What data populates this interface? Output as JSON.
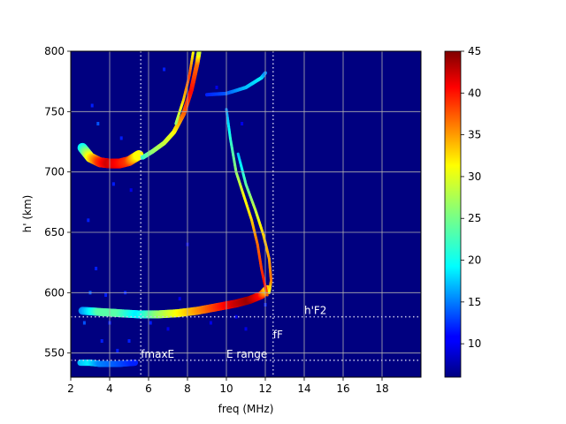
{
  "chart_data": {
    "type": "heatmap",
    "xlabel": "freq (MHz)",
    "ylabel": "h' (km)",
    "xlim": [
      2,
      20
    ],
    "ylim": [
      530,
      800
    ],
    "xticks": [
      2,
      4,
      6,
      8,
      10,
      12,
      14,
      16,
      18
    ],
    "yticks": [
      550,
      600,
      650,
      700,
      750,
      800
    ],
    "grid": true,
    "colormap": "jet",
    "colorbar": {
      "min": 6,
      "max": 45,
      "ticks": [
        10,
        15,
        20,
        25,
        30,
        35,
        40,
        45
      ]
    },
    "background_value": 6,
    "traces": [
      {
        "points": [
          [
            2.6,
            585
          ],
          [
            3.5,
            584
          ],
          [
            4.5,
            583
          ],
          [
            5.5,
            582
          ],
          [
            6.5,
            582
          ],
          [
            7.5,
            583
          ],
          [
            8.5,
            585
          ],
          [
            9.5,
            588
          ],
          [
            10.5,
            591
          ],
          [
            11.2,
            594
          ],
          [
            11.8,
            598
          ],
          [
            12.1,
            603
          ]
        ],
        "values": [
          16,
          24,
          24,
          20,
          26,
          30,
          34,
          38,
          42,
          44,
          40,
          32
        ],
        "width": 9
      },
      {
        "points": [
          [
            2.6,
            720
          ],
          [
            3.0,
            712
          ],
          [
            3.5,
            708
          ],
          [
            4.0,
            707
          ],
          [
            4.5,
            707
          ],
          [
            5.0,
            709
          ],
          [
            5.5,
            714
          ]
        ],
        "values": [
          20,
          30,
          38,
          42,
          40,
          38,
          30
        ],
        "width": 11
      },
      {
        "points": [
          [
            5.7,
            712
          ],
          [
            6.2,
            717
          ],
          [
            6.8,
            724
          ],
          [
            7.3,
            733
          ],
          [
            7.8,
            748
          ],
          [
            8.2,
            768
          ],
          [
            8.5,
            790
          ],
          [
            8.6,
            800
          ]
        ],
        "values": [
          22,
          26,
          28,
          30,
          36,
          40,
          36,
          28
        ],
        "width": 5
      },
      {
        "points": [
          [
            7.4,
            740
          ],
          [
            7.8,
            760
          ],
          [
            8.1,
            780
          ],
          [
            8.3,
            800
          ]
        ],
        "values": [
          26,
          32,
          38,
          30
        ],
        "width": 3
      },
      {
        "points": [
          [
            10.0,
            752
          ],
          [
            10.2,
            728
          ],
          [
            10.5,
            700
          ],
          [
            10.9,
            680
          ],
          [
            11.3,
            660
          ],
          [
            11.6,
            640
          ],
          [
            11.8,
            620
          ],
          [
            12.0,
            605
          ],
          [
            12.1,
            598
          ]
        ],
        "values": [
          16,
          22,
          26,
          30,
          32,
          36,
          38,
          40,
          36
        ],
        "width": 3
      },
      {
        "points": [
          [
            10.6,
            715
          ],
          [
            11.0,
            690
          ],
          [
            11.5,
            668
          ],
          [
            11.9,
            648
          ],
          [
            12.2,
            628
          ],
          [
            12.3,
            610
          ],
          [
            12.2,
            600
          ]
        ],
        "values": [
          18,
          24,
          28,
          32,
          34,
          36,
          30
        ],
        "width": 3
      },
      {
        "points": [
          [
            9.0,
            764
          ],
          [
            10.0,
            765
          ],
          [
            11.0,
            770
          ],
          [
            11.8,
            778
          ],
          [
            12.0,
            782
          ]
        ],
        "values": [
          12,
          14,
          18,
          20,
          16
        ],
        "width": 4
      },
      {
        "points": [
          [
            2.5,
            542
          ],
          [
            3.0,
            542
          ],
          [
            3.5,
            541
          ],
          [
            4.5,
            541
          ],
          [
            5.3,
            542
          ]
        ],
        "values": [
          18,
          20,
          16,
          14,
          12
        ],
        "width": 7
      }
    ],
    "speckles": [
      [
        3.0,
        600,
        14
      ],
      [
        3.3,
        620,
        12
      ],
      [
        2.9,
        660,
        12
      ],
      [
        3.4,
        740,
        14
      ],
      [
        3.1,
        755,
        12
      ],
      [
        4.2,
        690,
        12
      ],
      [
        4.6,
        728,
        12
      ],
      [
        5.1,
        685,
        10
      ],
      [
        4.0,
        575,
        12
      ],
      [
        3.6,
        560,
        12
      ],
      [
        5.0,
        560,
        12
      ],
      [
        4.4,
        552,
        12
      ],
      [
        6.1,
        575,
        12
      ],
      [
        7.0,
        570,
        10
      ],
      [
        7.6,
        595,
        10
      ],
      [
        8.0,
        640,
        10
      ],
      [
        9.2,
        575,
        10
      ],
      [
        10.5,
        580,
        10
      ],
      [
        11.0,
        570,
        10
      ],
      [
        6.8,
        785,
        12
      ],
      [
        9.5,
        770,
        10
      ],
      [
        10.8,
        740,
        10
      ],
      [
        12.0,
        590,
        12
      ],
      [
        2.7,
        575,
        14
      ],
      [
        3.8,
        598,
        12
      ],
      [
        4.8,
        600,
        12
      ]
    ],
    "vlines": [
      5.6,
      12.4
    ],
    "hlines": [
      580,
      544
    ],
    "annotations": [
      {
        "text": "fmaxE",
        "x": 5.6,
        "y": 544
      },
      {
        "text": "E range",
        "x": 10.0,
        "y": 544
      },
      {
        "text": "h'F2",
        "x": 14.0,
        "y": 580
      },
      {
        "text": "fF",
        "x": 12.4,
        "y": 560
      }
    ]
  }
}
